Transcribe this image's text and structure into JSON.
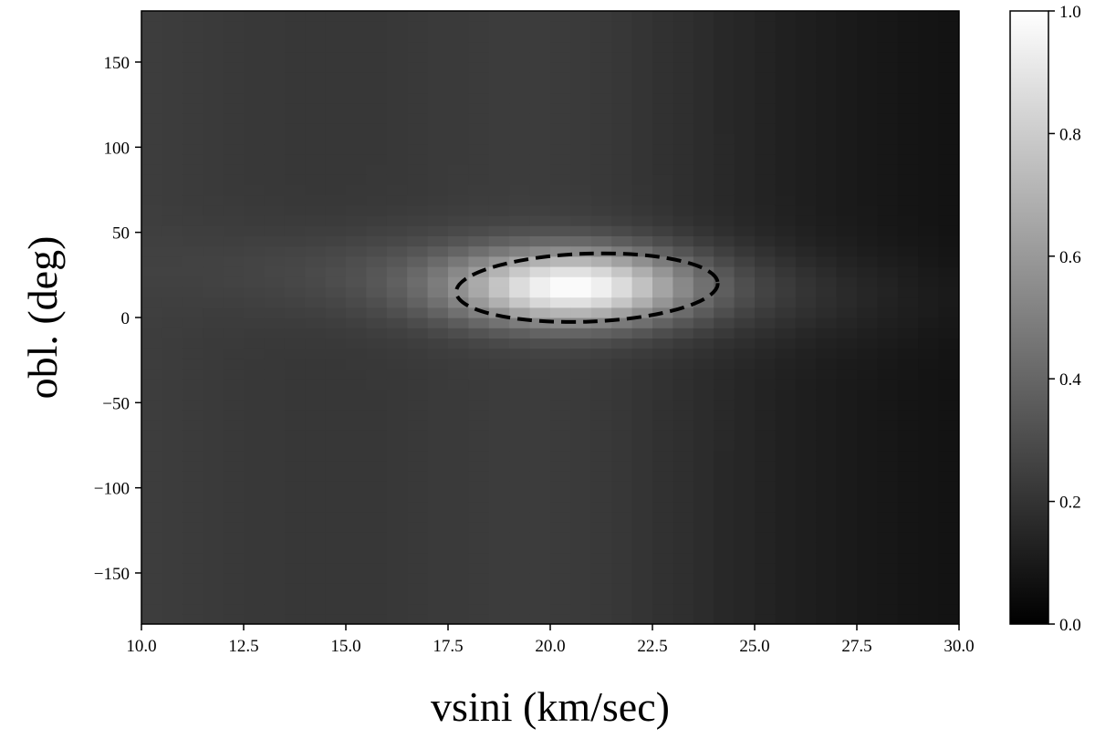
{
  "chart_data": {
    "type": "heatmap",
    "title": "",
    "xlabel": "vsini (km/sec)",
    "ylabel": "obl. (deg)",
    "xlim": [
      10.0,
      30.0
    ],
    "ylim": [
      -180,
      180
    ],
    "x_ticks": [
      "10.0",
      "12.5",
      "15.0",
      "17.5",
      "20.0",
      "22.5",
      "25.0",
      "27.5",
      "30.0"
    ],
    "y_ticks": [
      "−150",
      "−100",
      "−50",
      "0",
      "50",
      "100",
      "150"
    ],
    "colorbar": {
      "range": [
        0.0,
        1.0
      ],
      "ticks": [
        "0.0",
        "0.2",
        "0.4",
        "0.6",
        "0.8",
        "1.0"
      ],
      "colormap": "gray"
    },
    "peak": {
      "vsini": 20.5,
      "obl": 18,
      "value": 1.0
    },
    "contour": {
      "style": "dashed",
      "color": "#000000",
      "center_vsini": 20.9,
      "center_obl": 17.5,
      "half_width_vsini": 3.2,
      "half_height_obl": 20,
      "tilt_deg": -2
    },
    "grid": false,
    "legend": "none"
  }
}
